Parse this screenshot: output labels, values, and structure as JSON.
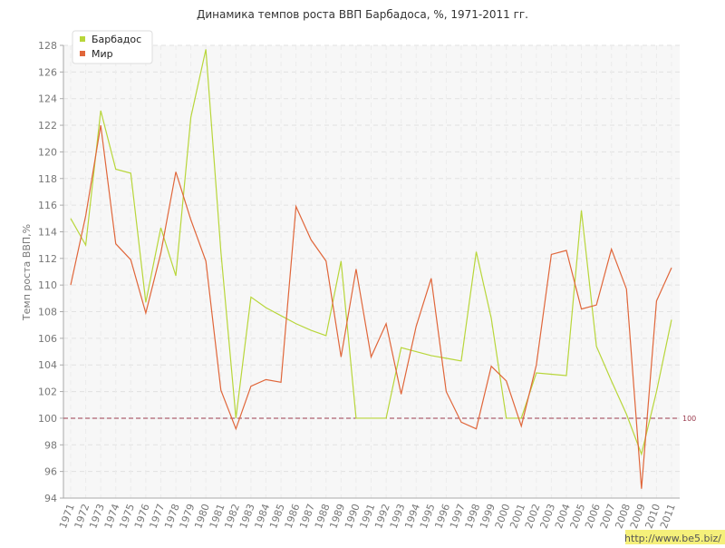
{
  "chart_data": {
    "type": "line",
    "title": "Динамика темпов роста ВВП Барбадоса, %, 1971-2011 гг.",
    "y_label": "Темп роста ВВП,%",
    "categories": [
      "1971",
      "1972",
      "1973",
      "1974",
      "1975",
      "1976",
      "1977",
      "1978",
      "1979",
      "1980",
      "1981",
      "1982",
      "1983",
      "1984",
      "1985",
      "1986",
      "1987",
      "1988",
      "1989",
      "1990",
      "1991",
      "1992",
      "1993",
      "1994",
      "1995",
      "1996",
      "1997",
      "1998",
      "1999",
      "2000",
      "2001",
      "2002",
      "2003",
      "2004",
      "2005",
      "2006",
      "2007",
      "2008",
      "2009",
      "2010",
      "2011"
    ],
    "series": [
      {
        "name": "Барбадос",
        "color": "#b8d63a",
        "values": [
          115.0,
          113.0,
          123.1,
          118.7,
          118.4,
          108.7,
          114.3,
          110.7,
          122.6,
          127.7,
          112.5,
          100.0,
          109.1,
          108.3,
          107.7,
          107.1,
          106.6,
          106.2,
          111.8,
          100.0,
          100.0,
          100.0,
          105.3,
          105.0,
          104.7,
          104.5,
          104.3,
          112.5,
          107.5,
          100.0,
          100.0,
          103.4,
          103.3,
          103.2,
          115.6,
          105.4,
          102.8,
          100.3,
          97.3,
          102.0,
          107.4
        ]
      },
      {
        "name": "Мир",
        "color": "#e0663a",
        "values": [
          110.0,
          115.2,
          122.0,
          113.1,
          111.9,
          107.9,
          112.4,
          118.5,
          114.9,
          111.8,
          102.1,
          99.2,
          102.4,
          102.9,
          102.7,
          115.9,
          113.4,
          111.8,
          104.6,
          111.2,
          104.6,
          107.1,
          101.8,
          106.9,
          110.5,
          102.0,
          99.7,
          99.2,
          103.9,
          102.8,
          99.4,
          104.0,
          112.3,
          112.6,
          108.2,
          108.5,
          112.7,
          109.7,
          94.7,
          108.8,
          111.3
        ]
      }
    ],
    "ylim": [
      94,
      128
    ],
    "yticks": [
      94,
      96,
      98,
      100,
      102,
      104,
      106,
      108,
      110,
      112,
      114,
      116,
      118,
      120,
      122,
      124,
      126,
      128
    ],
    "grid": true,
    "reference_line": 100,
    "reference_color": "#9b3b4e",
    "legend": "top-left",
    "watermark": "http://www.be5.biz/"
  }
}
